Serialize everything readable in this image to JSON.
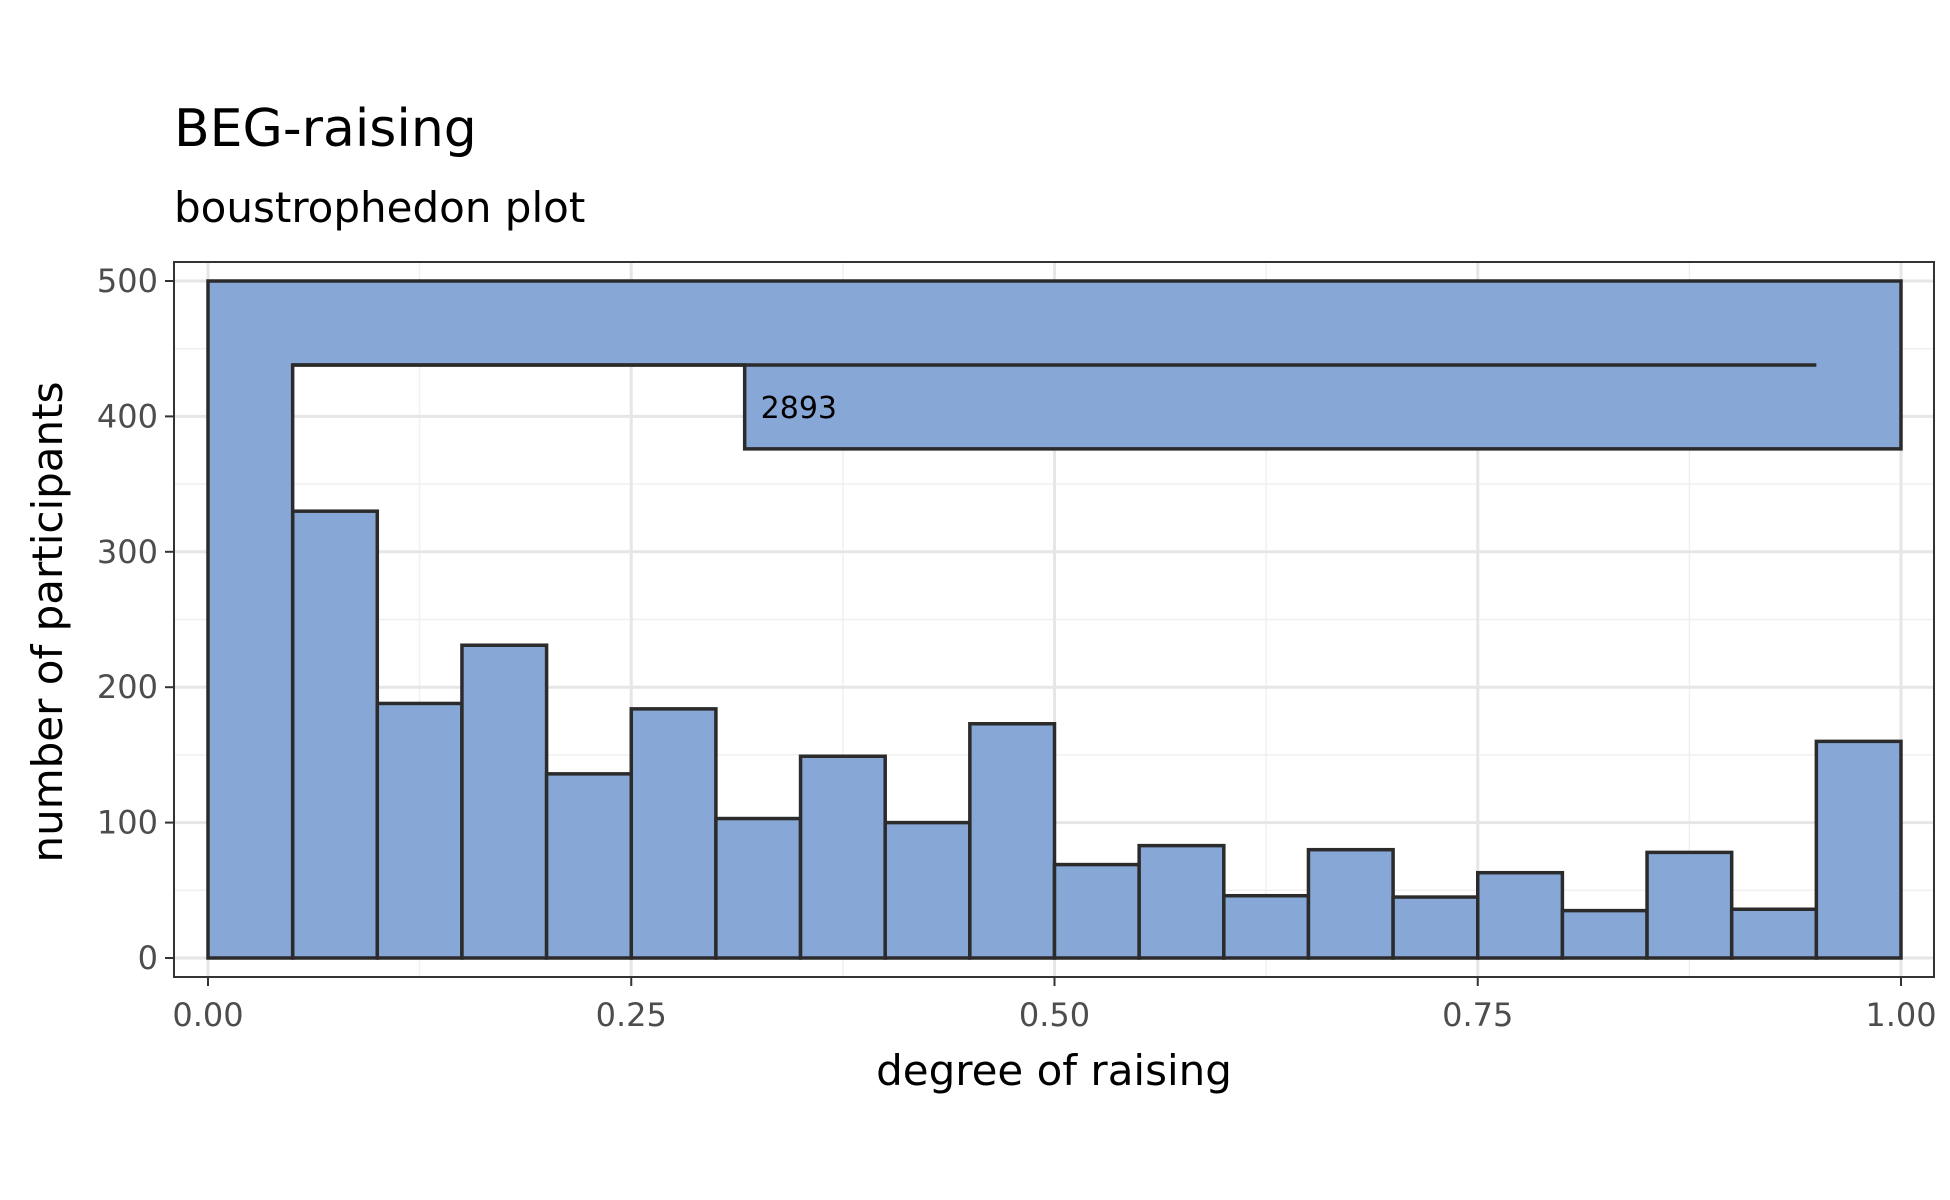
{
  "chart_data": {
    "type": "bar",
    "title": "BEG-raising",
    "subtitle": "boustrophedon plot",
    "xlabel": "degree of raising",
    "ylabel": "number of participants",
    "xlim": [
      0,
      1
    ],
    "ylim": [
      0,
      500
    ],
    "x_ticks": [
      "0.00",
      "0.25",
      "0.50",
      "0.75",
      "1.00"
    ],
    "x_tick_values": [
      0,
      0.25,
      0.5,
      0.75,
      1
    ],
    "y_ticks": [
      "0",
      "100",
      "200",
      "300",
      "400",
      "500"
    ],
    "y_tick_values": [
      0,
      100,
      200,
      300,
      400,
      500
    ],
    "grid": true,
    "bin_width": 0.05,
    "bins": [
      {
        "x0": 0.05,
        "x1": 0.1,
        "value": 330
      },
      {
        "x0": 0.1,
        "x1": 0.15,
        "value": 188
      },
      {
        "x0": 0.15,
        "x1": 0.2,
        "value": 231
      },
      {
        "x0": 0.2,
        "x1": 0.25,
        "value": 136
      },
      {
        "x0": 0.25,
        "x1": 0.3,
        "value": 184
      },
      {
        "x0": 0.3,
        "x1": 0.35,
        "value": 103
      },
      {
        "x0": 0.35,
        "x1": 0.4,
        "value": 149
      },
      {
        "x0": 0.4,
        "x1": 0.45,
        "value": 100
      },
      {
        "x0": 0.45,
        "x1": 0.5,
        "value": 173
      },
      {
        "x0": 0.5,
        "x1": 0.55,
        "value": 69
      },
      {
        "x0": 0.55,
        "x1": 0.6,
        "value": 83
      },
      {
        "x0": 0.6,
        "x1": 0.65,
        "value": 46
      },
      {
        "x0": 0.65,
        "x1": 0.7,
        "value": 80
      },
      {
        "x0": 0.7,
        "x1": 0.75,
        "value": 45
      },
      {
        "x0": 0.75,
        "x1": 0.8,
        "value": 63
      },
      {
        "x0": 0.8,
        "x1": 0.85,
        "value": 35
      },
      {
        "x0": 0.85,
        "x1": 0.9,
        "value": 78
      },
      {
        "x0": 0.9,
        "x1": 0.95,
        "value": 36
      },
      {
        "x0": 0.95,
        "x1": 1.0,
        "value": 160
      }
    ],
    "boustrophedon_bin": {
      "x0": 0.0,
      "x1": 0.05,
      "value": 2893,
      "label": "2893",
      "row_band_height": 62,
      "top_value": 500,
      "row2_top": 438,
      "row3_top": 438,
      "row3_bottom": 376,
      "row3_x_start": 0.317,
      "row3_x_end": 1.0,
      "row1_x_end": 1.0,
      "line_x_end": 0.95
    },
    "colors": {
      "bar_fill": "#87a7d6",
      "bar_stroke": "#2b2b2b",
      "grid": "#e6e6e6",
      "panel_border": "#333333"
    }
  }
}
